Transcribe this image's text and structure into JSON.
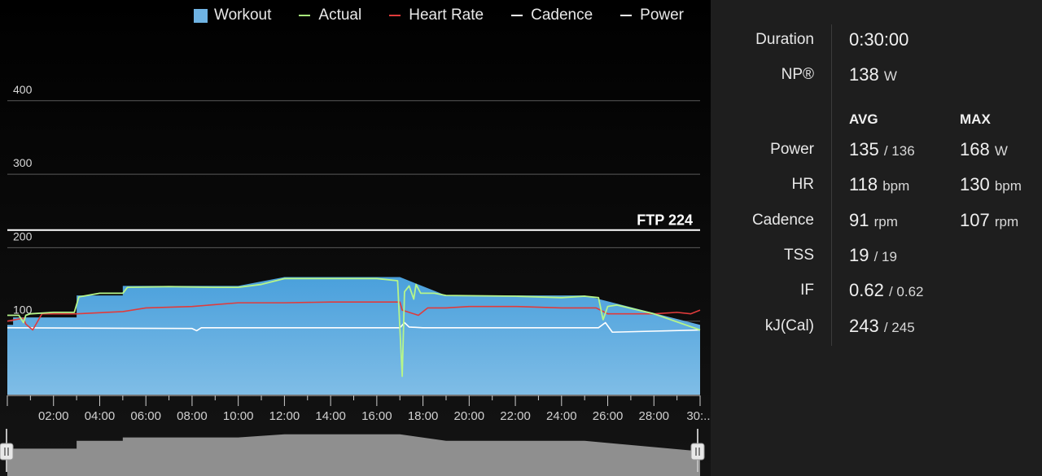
{
  "legend": [
    {
      "label": "Workout",
      "color": "#6fb3e3",
      "kind": "box"
    },
    {
      "label": "Actual",
      "color": "#a8f07c",
      "kind": "line"
    },
    {
      "label": "Heart Rate",
      "color": "#e03b3b",
      "kind": "line"
    },
    {
      "label": "Cadence",
      "color": "#ffffff",
      "kind": "line"
    },
    {
      "label": "Power",
      "color": "#ffffff",
      "kind": "line"
    }
  ],
  "ftp_label": "FTP 224",
  "chart_data": {
    "type": "area",
    "y_ticks": [
      "100",
      "200",
      "300",
      "400"
    ],
    "ylim": [
      0,
      420
    ],
    "x_ticks": [
      "02:00",
      "04:00",
      "06:00",
      "08:00",
      "10:00",
      "12:00",
      "14:00",
      "16:00",
      "18:00",
      "20:00",
      "22:00",
      "24:00",
      "26:00",
      "28:00",
      "30:..."
    ],
    "xlim_minutes": [
      0,
      30
    ],
    "ftp_watts": 224,
    "workout": {
      "name": "Workout",
      "minutes": [
        0,
        0.25,
        0.25,
        3,
        3,
        5,
        5,
        10,
        12,
        17,
        19,
        19,
        25,
        30
      ],
      "watts": [
        95,
        95,
        105,
        105,
        135,
        135,
        148,
        148,
        160,
        160,
        135,
        135,
        135,
        95
      ]
    },
    "actual": {
      "name": "Actual",
      "minutes": [
        0,
        0.5,
        0.7,
        0.8,
        1.0,
        2.0,
        2.9,
        3.1,
        4.0,
        5.0,
        5.2,
        7,
        9,
        10,
        11,
        12,
        14,
        16,
        16.9,
        17.1,
        17.2,
        17.4,
        17.6,
        17.7,
        17.9,
        18.0,
        18.5,
        19.0,
        22,
        24,
        25,
        25.6,
        25.8,
        26.0,
        26.4,
        28,
        30
      ],
      "watts": [
        108,
        108,
        98,
        108,
        110,
        112,
        112,
        133,
        138,
        138,
        146,
        147,
        146,
        146,
        150,
        158,
        158,
        158,
        155,
        25,
        140,
        148,
        130,
        150,
        138,
        138,
        138,
        135,
        134,
        132,
        134,
        132,
        102,
        120,
        122,
        110,
        88
      ]
    },
    "heart_rate": {
      "name": "Heart Rate",
      "minutes": [
        0,
        0.7,
        0.8,
        1.1,
        1.5,
        3,
        5,
        6,
        8,
        10,
        12,
        14,
        16,
        17.0,
        17.1,
        17.8,
        18.2,
        19,
        20,
        22,
        24,
        25.5,
        26,
        27,
        28,
        29,
        29.6,
        30
      ],
      "bpm": [
        100,
        104,
        96,
        88,
        110,
        110,
        113,
        118,
        120,
        125,
        125,
        126,
        126,
        126,
        115,
        108,
        118,
        118,
        120,
        120,
        118,
        118,
        110,
        110,
        110,
        112,
        110,
        115
      ]
    },
    "cadence": {
      "name": "Cadence",
      "minutes": [
        0,
        8,
        8.2,
        8.4,
        12,
        17.0,
        17.2,
        17.4,
        18,
        25.6,
        25.9,
        26.2,
        30
      ],
      "rpm": [
        91,
        90,
        87,
        91,
        91,
        91,
        98,
        92,
        91,
        91,
        98,
        85,
        88
      ]
    }
  },
  "stats": {
    "duration": {
      "label": "Duration",
      "value": "0:30:00"
    },
    "np": {
      "label": "NP®",
      "value": "138",
      "unit": "W"
    },
    "col_avg": "AVG",
    "col_max": "MAX",
    "power": {
      "label": "Power",
      "avg": "135",
      "avg_sep": "/ 136",
      "max": "168",
      "max_unit": "W"
    },
    "hr": {
      "label": "HR",
      "avg": "118",
      "avg_unit": "bpm",
      "max": "130",
      "max_unit": "bpm"
    },
    "cadence": {
      "label": "Cadence",
      "avg": "91",
      "avg_unit": "rpm",
      "max": "107",
      "max_unit": "rpm"
    },
    "tss": {
      "label": "TSS",
      "avg": "19",
      "avg_sep": "/ 19"
    },
    "if": {
      "label": "IF",
      "avg": "0.62",
      "avg_sep": "/ 0.62"
    },
    "kj": {
      "label": "kJ(Cal)",
      "avg": "243",
      "avg_sep": "/ 245"
    }
  }
}
